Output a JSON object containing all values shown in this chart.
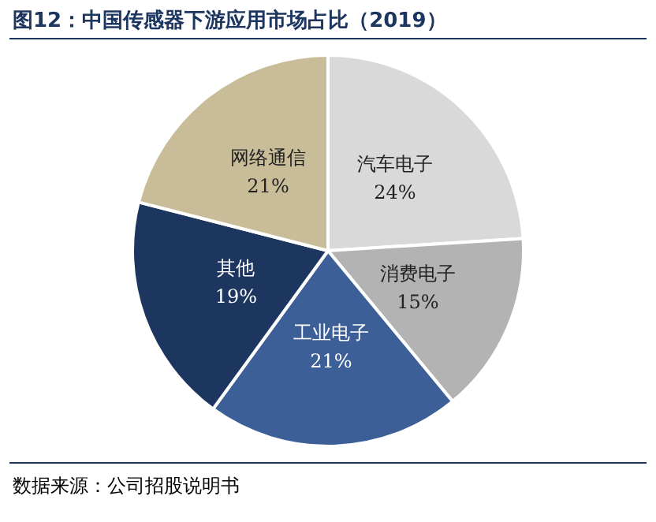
{
  "chart_data": {
    "type": "pie",
    "title": "图12：中国传感器下游应用市场占比（2019）",
    "categories": [
      "汽车电子",
      "消费电子",
      "工业电子",
      "其他",
      "网络通信"
    ],
    "values": [
      24,
      15,
      21,
      19,
      21
    ],
    "colors": [
      "#d9d9d9",
      "#b3b3b3",
      "#3c5f97",
      "#1d3660",
      "#c8bd98"
    ],
    "value_labels": [
      "24%",
      "15%",
      "21%",
      "19%",
      "21%"
    ],
    "legend": false,
    "annotations": [
      "数据来源：公司招股说明书"
    ]
  }
}
